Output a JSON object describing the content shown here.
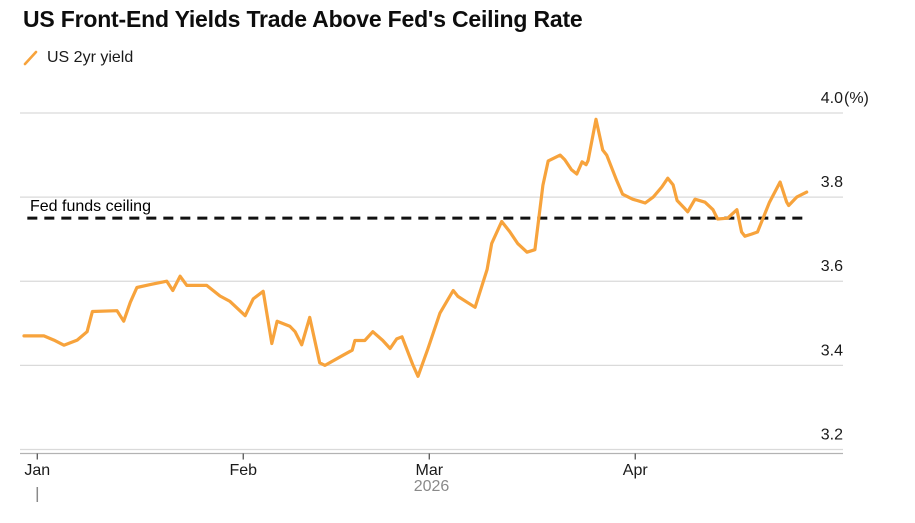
{
  "title": "US Front-End Yields Trade Above Fed's Ceiling Rate",
  "legend": {
    "swatch_icon": "slash-icon",
    "series_label": "US 2yr yield"
  },
  "ceiling": {
    "label": "Fed funds ceiling",
    "value": 3.75
  },
  "colors": {
    "line": "#F7A33C",
    "ceiling_line": "#111111",
    "grid": "#DADADA",
    "axis": "#B3B3B3",
    "tick": "#555555",
    "text": "#1A1A1A",
    "muted_text": "#8A8A8A",
    "background": "#FFFFFF"
  },
  "chart_data": {
    "type": "line",
    "title": "US Front-End Yields Trade Above Fed's Ceiling Rate",
    "ylim": [
      3.2,
      4.0
    ],
    "grid": "horizontal",
    "legend_position": "top-left",
    "y_ticks": [
      {
        "label": "4.0",
        "suffix": "(%)",
        "value": 4.0
      },
      {
        "label": "3.8",
        "value": 3.8
      },
      {
        "label": "3.6",
        "value": 3.6
      },
      {
        "label": "3.4",
        "value": 3.4
      },
      {
        "label": "3.2",
        "value": 3.2
      }
    ],
    "x_axis": {
      "ticks": [
        {
          "label": "Jan",
          "day": 2
        },
        {
          "label": "Feb",
          "day": 33
        },
        {
          "label": "Mar",
          "day": 61
        },
        {
          "label": "Apr",
          "day": 92
        }
      ],
      "year_label": "2026",
      "x_unit": "days"
    },
    "ceiling_line": {
      "label": "Fed funds ceiling",
      "value": 3.75,
      "style": "dashed",
      "color": "#111111"
    },
    "series": [
      {
        "name": "US 2yr yield",
        "color": "#F7A33C",
        "points": [
          [
            0,
            3.47
          ],
          [
            3,
            3.47
          ],
          [
            4.5,
            3.46
          ],
          [
            6,
            3.448
          ],
          [
            8,
            3.46
          ],
          [
            9.5,
            3.48
          ],
          [
            10.3,
            3.528
          ],
          [
            14,
            3.53
          ],
          [
            15,
            3.505
          ],
          [
            16,
            3.55
          ],
          [
            17,
            3.585
          ],
          [
            19,
            3.592
          ],
          [
            21.5,
            3.6
          ],
          [
            22.4,
            3.578
          ],
          [
            23.5,
            3.612
          ],
          [
            24.5,
            3.59
          ],
          [
            27.5,
            3.59
          ],
          [
            29.5,
            3.565
          ],
          [
            31,
            3.552
          ],
          [
            33.3,
            3.518
          ],
          [
            34.5,
            3.558
          ],
          [
            36,
            3.576
          ],
          [
            37.3,
            3.452
          ],
          [
            38.1,
            3.505
          ],
          [
            40,
            3.493
          ],
          [
            40.8,
            3.48
          ],
          [
            41.8,
            3.449
          ],
          [
            43,
            3.514
          ],
          [
            44.5,
            3.406
          ],
          [
            45.3,
            3.4
          ],
          [
            48,
            3.424
          ],
          [
            49.4,
            3.436
          ],
          [
            49.8,
            3.459
          ],
          [
            51.3,
            3.459
          ],
          [
            52.5,
            3.48
          ],
          [
            54,
            3.459
          ],
          [
            55.1,
            3.44
          ],
          [
            56.1,
            3.463
          ],
          [
            56.9,
            3.468
          ],
          [
            58.5,
            3.402
          ],
          [
            59.3,
            3.374
          ],
          [
            60.8,
            3.44
          ],
          [
            62.6,
            3.524
          ],
          [
            64.6,
            3.578
          ],
          [
            65.3,
            3.564
          ],
          [
            66.8,
            3.549
          ],
          [
            67.9,
            3.538
          ],
          [
            69.7,
            3.628
          ],
          [
            70.4,
            3.69
          ],
          [
            71.9,
            3.742
          ],
          [
            73.1,
            3.718
          ],
          [
            74.3,
            3.69
          ],
          [
            75.7,
            3.669
          ],
          [
            76.9,
            3.675
          ],
          [
            78.1,
            3.828
          ],
          [
            78.9,
            3.886
          ],
          [
            80.7,
            3.9
          ],
          [
            81.4,
            3.889
          ],
          [
            82.4,
            3.865
          ],
          [
            83.2,
            3.855
          ],
          [
            84,
            3.884
          ],
          [
            84.6,
            3.877
          ],
          [
            84.9,
            3.887
          ],
          [
            86.1,
            3.985
          ],
          [
            87.1,
            3.912
          ],
          [
            87.7,
            3.9
          ],
          [
            89.2,
            3.84
          ],
          [
            90.1,
            3.807
          ],
          [
            91.6,
            3.795
          ],
          [
            92.7,
            3.79
          ],
          [
            93.5,
            3.786
          ],
          [
            94.7,
            3.8
          ],
          [
            96,
            3.824
          ],
          [
            96.9,
            3.845
          ],
          [
            97.7,
            3.829
          ],
          [
            98.3,
            3.792
          ],
          [
            99.5,
            3.772
          ],
          [
            99.9,
            3.765
          ],
          [
            101,
            3.795
          ],
          [
            102.5,
            3.788
          ],
          [
            103.7,
            3.77
          ],
          [
            104.4,
            3.748
          ],
          [
            105.9,
            3.75
          ],
          [
            107.3,
            3.77
          ],
          [
            108,
            3.717
          ],
          [
            108.5,
            3.707
          ],
          [
            109.5,
            3.712
          ],
          [
            110.4,
            3.717
          ],
          [
            111.5,
            3.76
          ],
          [
            112.2,
            3.788
          ],
          [
            113.8,
            3.836
          ],
          [
            114.8,
            3.788
          ],
          [
            115.1,
            3.78
          ],
          [
            116.3,
            3.8
          ],
          [
            117.8,
            3.812
          ]
        ]
      }
    ]
  }
}
